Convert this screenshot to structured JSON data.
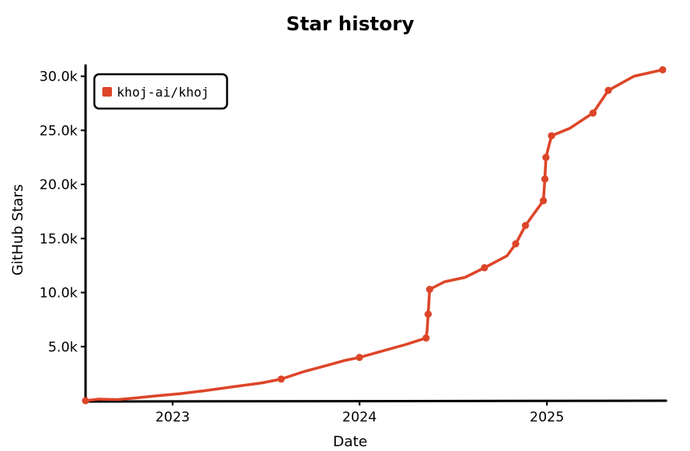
{
  "chart_data": {
    "type": "line",
    "title": "Star history",
    "xlabel": "Date",
    "ylabel": "GitHub Stars",
    "x_ticks": [
      "2023",
      "2024",
      "2025"
    ],
    "y_ticks": [
      "5.0k",
      "10.0k",
      "15.0k",
      "20.0k",
      "25.0k",
      "30.0k"
    ],
    "ylim": [
      0,
      31000
    ],
    "xlim": [
      "2022-07-15",
      "2025-08-20"
    ],
    "legend_position": "top-left",
    "colors": {
      "series": "#dd4528"
    },
    "series": [
      {
        "name": "khoj-ai/khoj",
        "points": [
          [
            "2022-07-15",
            0
          ],
          [
            "2022-08-10",
            150
          ],
          [
            "2022-09-15",
            100
          ],
          [
            "2022-10-20",
            250
          ],
          [
            "2022-12-01",
            450
          ],
          [
            "2023-01-15",
            650
          ],
          [
            "2023-03-01",
            900
          ],
          [
            "2023-05-01",
            1300
          ],
          [
            "2023-06-25",
            1650
          ],
          [
            "2023-08-01",
            2000
          ],
          [
            "2023-09-15",
            2700
          ],
          [
            "2023-11-01",
            3300
          ],
          [
            "2023-12-01",
            3700
          ],
          [
            "2024-01-01",
            4000
          ],
          [
            "2024-02-15",
            4600
          ],
          [
            "2024-04-01",
            5200
          ],
          [
            "2024-05-10",
            5800
          ],
          [
            "2024-05-12",
            6500
          ],
          [
            "2024-05-14",
            8000
          ],
          [
            "2024-05-17",
            10300
          ],
          [
            "2024-06-15",
            11000
          ],
          [
            "2024-07-25",
            11400
          ],
          [
            "2024-09-01",
            12300
          ],
          [
            "2024-10-15",
            13400
          ],
          [
            "2024-11-01",
            14500
          ],
          [
            "2024-11-20",
            16200
          ],
          [
            "2024-12-25",
            18500
          ],
          [
            "2024-12-28",
            20500
          ],
          [
            "2024-12-30",
            22500
          ],
          [
            "2025-01-10",
            24500
          ],
          [
            "2025-02-15",
            25200
          ],
          [
            "2025-04-01",
            26600
          ],
          [
            "2025-05-01",
            28700
          ],
          [
            "2025-06-20",
            30000
          ],
          [
            "2025-08-15",
            30600
          ]
        ],
        "markers": [
          [
            "2022-07-15",
            0
          ],
          [
            "2023-08-01",
            2000
          ],
          [
            "2024-01-01",
            4000
          ],
          [
            "2024-05-10",
            5800
          ],
          [
            "2024-05-14",
            8000
          ],
          [
            "2024-05-17",
            10300
          ],
          [
            "2024-09-01",
            12300
          ],
          [
            "2024-11-01",
            14500
          ],
          [
            "2024-11-20",
            16200
          ],
          [
            "2024-12-25",
            18500
          ],
          [
            "2024-12-28",
            20500
          ],
          [
            "2024-12-30",
            22500
          ],
          [
            "2025-01-10",
            24500
          ],
          [
            "2025-04-01",
            26600
          ],
          [
            "2025-05-01",
            28700
          ],
          [
            "2025-08-15",
            30600
          ]
        ]
      }
    ]
  }
}
